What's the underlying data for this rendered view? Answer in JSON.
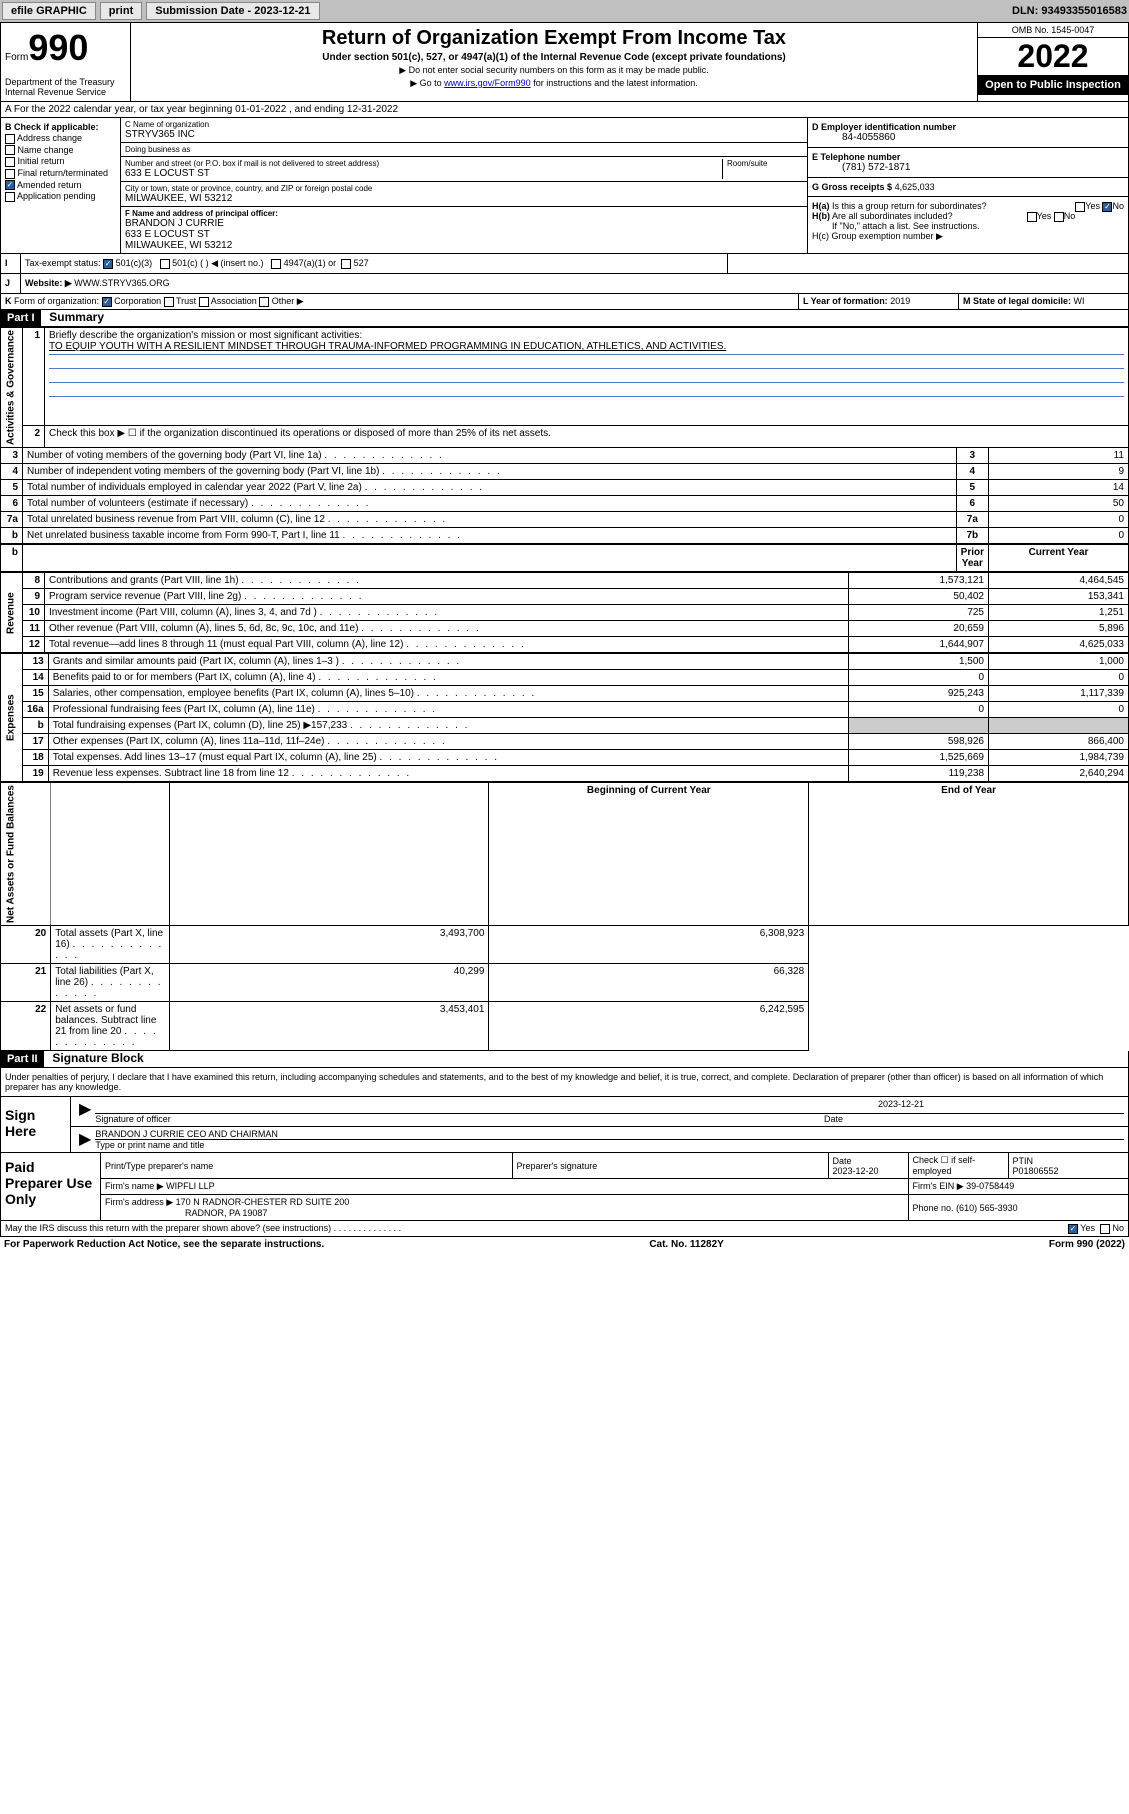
{
  "topbar": {
    "efile": "efile GRAPHIC",
    "print": "print",
    "sub_label": "Submission Date - 2023-12-21",
    "dln": "DLN: 93493355016583"
  },
  "header": {
    "form_word": "Form",
    "form_num": "990",
    "dept": "Department of the Treasury\nInternal Revenue Service",
    "title": "Return of Organization Exempt From Income Tax",
    "sub": "Under section 501(c), 527, or 4947(a)(1) of the Internal Revenue Code (except private foundations)",
    "note1": "▶ Do not enter social security numbers on this form as it may be made public.",
    "note2_pre": "▶ Go to ",
    "note2_link": "www.irs.gov/Form990",
    "note2_post": " for instructions and the latest information.",
    "omb": "OMB No. 1545-0047",
    "year": "2022",
    "otp": "Open to Public Inspection"
  },
  "sectionA": "A For the 2022 calendar year, or tax year beginning 01-01-2022   , and ending 12-31-2022",
  "colB": {
    "hdr": "B Check if applicable:",
    "items": [
      "Address change",
      "Name change",
      "Initial return",
      "Final return/terminated",
      "Amended return",
      "Application pending"
    ],
    "checked_idx": 4
  },
  "colC": {
    "name_lbl": "C Name of organization",
    "name": "STRYV365 INC",
    "dba_lbl": "Doing business as",
    "dba": "",
    "addr_lbl": "Number and street (or P.O. box if mail is not delivered to street address)",
    "room_lbl": "Room/suite",
    "addr": "633 E LOCUST ST",
    "city_lbl": "City or town, state or province, country, and ZIP or foreign postal code",
    "city": "MILWAUKEE, WI  53212",
    "f_lbl": "F Name and address of principal officer:",
    "f_name": "BRANDON J CURRIE",
    "f_addr1": "633 E LOCUST ST",
    "f_addr2": "MILWAUKEE, WI  53212"
  },
  "colD": {
    "d_lbl": "D Employer identification number",
    "d_val": "84-4055860",
    "e_lbl": "E Telephone number",
    "e_val": "(781) 572-1871",
    "g_lbl": "G Gross receipts $",
    "g_val": "4,625,033",
    "ha_lbl": "H(a)  Is this a group return for subordinates?",
    "hb_lbl": "H(b)  Are all subordinates included?",
    "hb_note": "If \"No,\" attach a list. See instructions.",
    "hc_lbl": "H(c)  Group exemption number ▶"
  },
  "rowI": {
    "l": "I",
    "lbl": "Tax-exempt status:",
    "opt1": "501(c)(3)",
    "opt2": "501(c) (  ) ◀ (insert no.)",
    "opt3": "4947(a)(1) or",
    "opt4": "527"
  },
  "rowJ": {
    "l": "J",
    "lbl": "Website: ▶",
    "val": "WWW.STRYV365.ORG"
  },
  "rowK": {
    "l": "K",
    "lbl": "Form of organization:",
    "opts": [
      "Corporation",
      "Trust",
      "Association",
      "Other ▶"
    ],
    "l_lbl": "L Year of formation:",
    "l_val": "2019",
    "m_lbl": "M State of legal domicile:",
    "m_val": "WI"
  },
  "part1": {
    "hdr": "Part I",
    "title": "Summary",
    "q1": "Briefly describe the organization's mission or most significant activities:",
    "mission": "TO EQUIP YOUTH WITH A RESILIENT MINDSET THROUGH TRAUMA-INFORMED PROGRAMMING IN EDUCATION, ATHLETICS, AND ACTIVITIES.",
    "q2": "Check this box ▶ ☐  if the organization discontinued its operations or disposed of more than 25% of its net assets.",
    "side_ag": "Activities & Governance",
    "side_rev": "Revenue",
    "side_exp": "Expenses",
    "side_net": "Net Assets or Fund Balances",
    "rows_ag": [
      {
        "n": "3",
        "d": "Number of voting members of the governing body (Part VI, line 1a)",
        "b": "3",
        "v": "11"
      },
      {
        "n": "4",
        "d": "Number of independent voting members of the governing body (Part VI, line 1b)",
        "b": "4",
        "v": "9"
      },
      {
        "n": "5",
        "d": "Total number of individuals employed in calendar year 2022 (Part V, line 2a)",
        "b": "5",
        "v": "14"
      },
      {
        "n": "6",
        "d": "Total number of volunteers (estimate if necessary)",
        "b": "6",
        "v": "50"
      },
      {
        "n": "7a",
        "d": "Total unrelated business revenue from Part VIII, column (C), line 12",
        "b": "7a",
        "v": "0"
      },
      {
        "n": "b",
        "d": "Net unrelated business taxable income from Form 990-T, Part I, line 11",
        "b": "7b",
        "v": "0"
      }
    ],
    "hdr_prior": "Prior Year",
    "hdr_curr": "Current Year",
    "rows_rev": [
      {
        "n": "8",
        "d": "Contributions and grants (Part VIII, line 1h)",
        "p": "1,573,121",
        "c": "4,464,545"
      },
      {
        "n": "9",
        "d": "Program service revenue (Part VIII, line 2g)",
        "p": "50,402",
        "c": "153,341"
      },
      {
        "n": "10",
        "d": "Investment income (Part VIII, column (A), lines 3, 4, and 7d )",
        "p": "725",
        "c": "1,251"
      },
      {
        "n": "11",
        "d": "Other revenue (Part VIII, column (A), lines 5, 6d, 8c, 9c, 10c, and 11e)",
        "p": "20,659",
        "c": "5,896"
      },
      {
        "n": "12",
        "d": "Total revenue—add lines 8 through 11 (must equal Part VIII, column (A), line 12)",
        "p": "1,644,907",
        "c": "4,625,033"
      }
    ],
    "rows_exp": [
      {
        "n": "13",
        "d": "Grants and similar amounts paid (Part IX, column (A), lines 1–3 )",
        "p": "1,500",
        "c": "1,000"
      },
      {
        "n": "14",
        "d": "Benefits paid to or for members (Part IX, column (A), line 4)",
        "p": "0",
        "c": "0"
      },
      {
        "n": "15",
        "d": "Salaries, other compensation, employee benefits (Part IX, column (A), lines 5–10)",
        "p": "925,243",
        "c": "1,117,339"
      },
      {
        "n": "16a",
        "d": "Professional fundraising fees (Part IX, column (A), line 11e)",
        "p": "0",
        "c": "0"
      },
      {
        "n": "b",
        "d": "Total fundraising expenses (Part IX, column (D), line 25) ▶157,233",
        "p": "",
        "c": ""
      },
      {
        "n": "17",
        "d": "Other expenses (Part IX, column (A), lines 11a–11d, 11f–24e)",
        "p": "598,926",
        "c": "866,400"
      },
      {
        "n": "18",
        "d": "Total expenses. Add lines 13–17 (must equal Part IX, column (A), line 25)",
        "p": "1,525,669",
        "c": "1,984,739"
      },
      {
        "n": "19",
        "d": "Revenue less expenses. Subtract line 18 from line 12",
        "p": "119,238",
        "c": "2,640,294"
      }
    ],
    "hdr_boy": "Beginning of Current Year",
    "hdr_eoy": "End of Year",
    "rows_net": [
      {
        "n": "20",
        "d": "Total assets (Part X, line 16)",
        "p": "3,493,700",
        "c": "6,308,923"
      },
      {
        "n": "21",
        "d": "Total liabilities (Part X, line 26)",
        "p": "40,299",
        "c": "66,328"
      },
      {
        "n": "22",
        "d": "Net assets or fund balances. Subtract line 21 from line 20",
        "p": "3,453,401",
        "c": "6,242,595"
      }
    ]
  },
  "part2": {
    "hdr": "Part II",
    "title": "Signature Block",
    "decl": "Under penalties of perjury, I declare that I have examined this return, including accompanying schedules and statements, and to the best of my knowledge and belief, it is true, correct, and complete. Declaration of preparer (other than officer) is based on all information of which preparer has any knowledge.",
    "sign_here": "Sign Here",
    "sig_officer": "Signature of officer",
    "sig_date": "2023-12-21",
    "date_lbl": "Date",
    "officer_name": "BRANDON J CURRIE  CEO AND CHAIRMAN",
    "officer_lbl": "Type or print name and title",
    "paid_prep": "Paid Preparer Use Only",
    "prep_name_lbl": "Print/Type preparer's name",
    "prep_sig_lbl": "Preparer's signature",
    "prep_date_lbl": "Date",
    "prep_date": "2023-12-20",
    "prep_check_lbl": "Check ☐ if self-employed",
    "ptin_lbl": "PTIN",
    "ptin": "P01806552",
    "firm_name_lbl": "Firm's name    ▶",
    "firm_name": "WIPFLI LLP",
    "firm_ein_lbl": "Firm's EIN ▶",
    "firm_ein": "39-0758449",
    "firm_addr_lbl": "Firm's address ▶",
    "firm_addr1": "170 N RADNOR-CHESTER RD SUITE 200",
    "firm_addr2": "RADNOR, PA  19087",
    "phone_lbl": "Phone no.",
    "phone": "(610) 565-3930",
    "discuss": "May the IRS discuss this return with the preparer shown above? (see instructions)",
    "yes": "Yes",
    "no": "No"
  },
  "footer": {
    "pra": "For Paperwork Reduction Act Notice, see the separate instructions.",
    "cat": "Cat. No. 11282Y",
    "form": "Form 990 (2022)"
  }
}
